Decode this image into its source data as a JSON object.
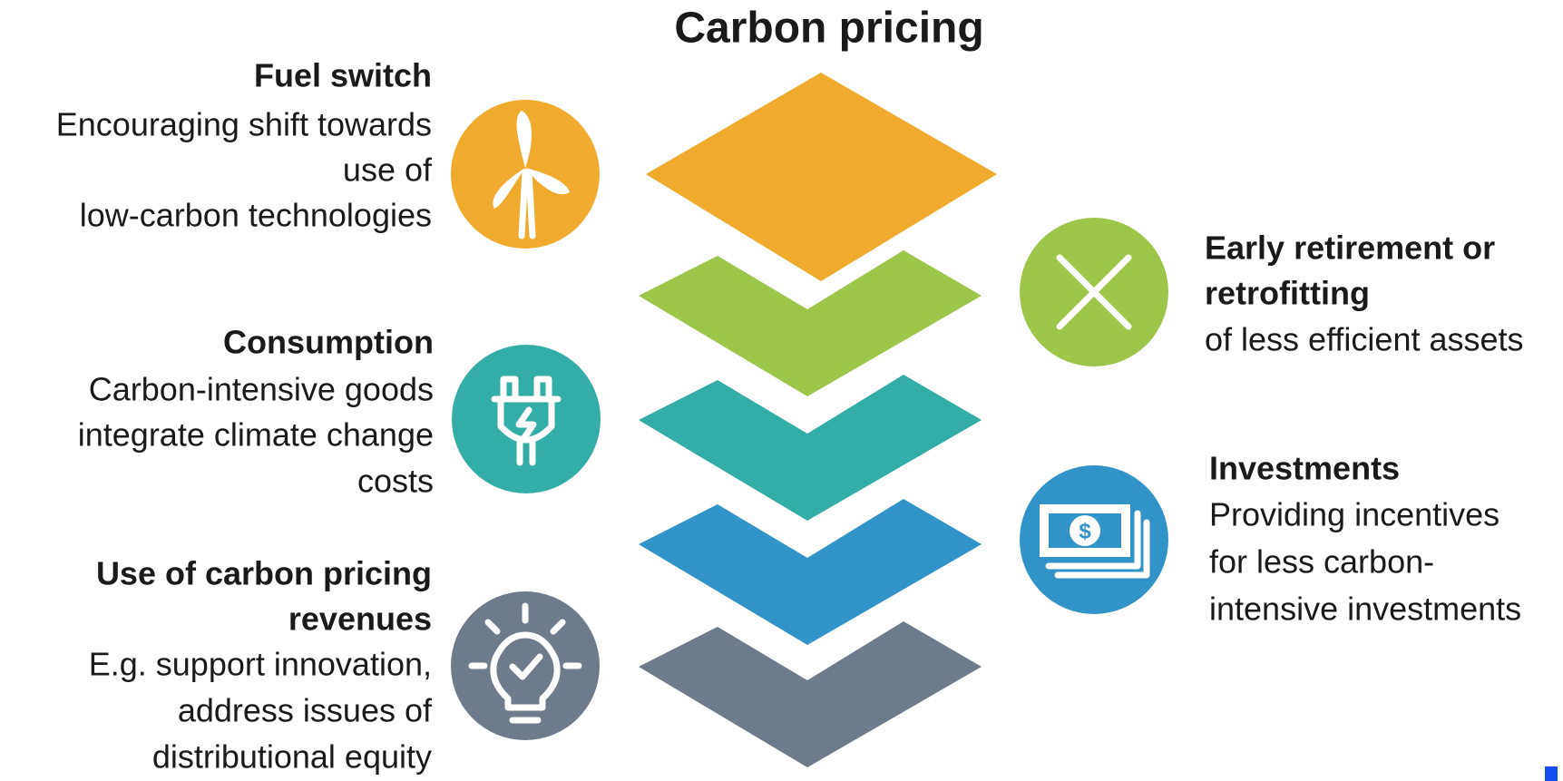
{
  "title": "Carbon pricing",
  "left_items": [
    {
      "heading": [
        "Fuel switch"
      ],
      "lines": [
        "Encouraging shift towards",
        "use of",
        "low-carbon technologies"
      ]
    },
    {
      "heading": [
        "Consumption"
      ],
      "lines": [
        "Carbon-intensive goods",
        "integrate climate change",
        "costs"
      ]
    },
    {
      "heading": [
        "Use of carbon pricing",
        "revenues"
      ],
      "lines": [
        "E.g. support innovation,",
        "address issues of",
        "distributional equity"
      ]
    }
  ],
  "right_items": [
    {
      "heading": [
        "Early retirement or",
        "retrofitting"
      ],
      "lines": [
        "of less efficient assets"
      ]
    },
    {
      "heading": [
        "Investments"
      ],
      "lines": [
        "Providing incentives",
        "for less carbon-",
        "intensive investments"
      ]
    }
  ]
}
